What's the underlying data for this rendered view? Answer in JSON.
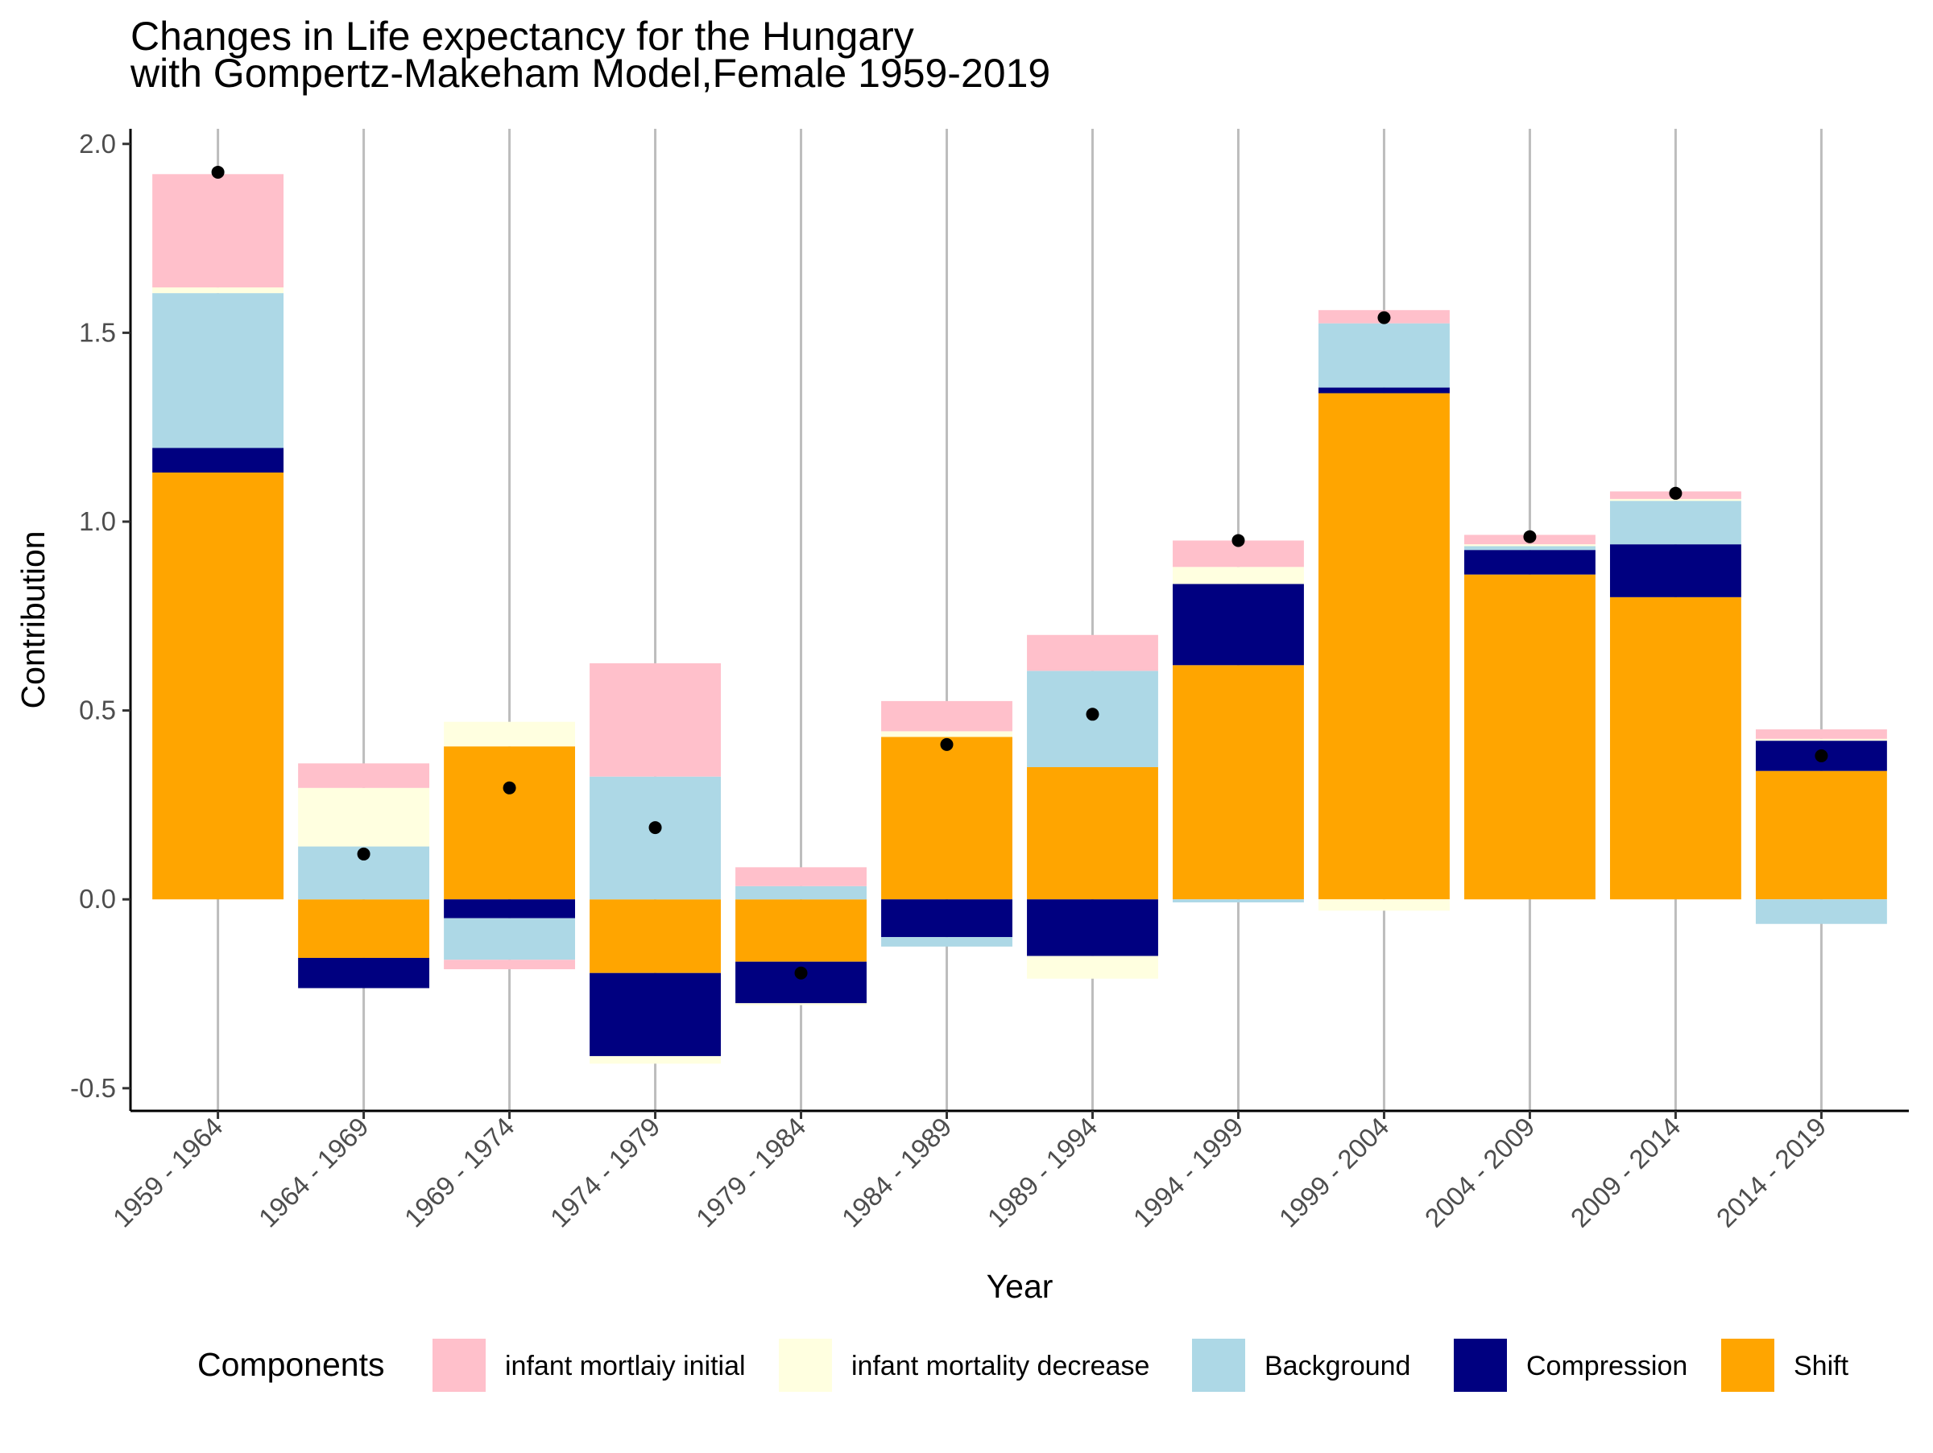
{
  "chart_data": {
    "type": "bar",
    "stacked": "diverging",
    "title_lines": [
      "Changes in Life expectancy for the Hungary",
      " with Gompertz-Makeham Model,Female 1959-2019"
    ],
    "xlabel": "Year",
    "ylabel": "Contribution",
    "ylim": [
      -0.56,
      2.04
    ],
    "yticks": [
      -0.5,
      0.0,
      0.5,
      1.0,
      1.5,
      2.0
    ],
    "ytick_labels": [
      "-0.5",
      "0.0",
      "0.5",
      "1.0",
      "1.5",
      "2.0"
    ],
    "grid": "vertical major lines only",
    "legend_position": "bottom",
    "legend_title": "Components",
    "categories": [
      "1959 - 1964",
      "1964 - 1969",
      "1969 - 1974",
      "1974 - 1979",
      "1979 - 1984",
      "1984 - 1989",
      "1989 - 1994",
      "1994 - 1999",
      "1999 - 2004",
      "2004 - 2009",
      "2009 - 2014",
      "2014 - 2019"
    ],
    "series": [
      {
        "name": "Shift",
        "color": "#FFA500",
        "values": [
          1.13,
          -0.155,
          0.405,
          -0.195,
          -0.165,
          0.43,
          0.35,
          0.62,
          1.34,
          0.86,
          0.8,
          0.34
        ]
      },
      {
        "name": "Compression",
        "color": "#000080",
        "values": [
          0.065,
          -0.08,
          -0.05,
          -0.22,
          -0.11,
          -0.1,
          -0.15,
          0.215,
          0.015,
          0.065,
          0.14,
          0.08
        ]
      },
      {
        "name": "Background",
        "color": "#ADD8E6",
        "values": [
          0.41,
          0.14,
          -0.11,
          0.325,
          0.035,
          -0.025,
          0.255,
          -0.008,
          0.17,
          0.01,
          0.115,
          -0.065
        ]
      },
      {
        "name": "infant mortality decrease",
        "color": "#FFFFE0",
        "values": [
          0.015,
          0.155,
          0.065,
          -0.02,
          -0.005,
          0.015,
          -0.06,
          0.045,
          -0.03,
          0.005,
          0.005,
          0.005
        ]
      },
      {
        "name": "infant mortlaiy initial",
        "color": "#FFC0CB",
        "values": [
          0.3,
          0.065,
          -0.025,
          0.3,
          0.05,
          0.08,
          0.095,
          0.07,
          0.035,
          0.025,
          0.02,
          0.025
        ]
      }
    ],
    "legend_order": [
      "infant mortlaiy initial",
      "infant mortality decrease",
      "Background",
      "Compression",
      "Shift"
    ],
    "total_points": [
      1.925,
      0.12,
      0.295,
      0.19,
      -0.195,
      0.41,
      0.49,
      0.95,
      1.54,
      0.96,
      1.075,
      0.38
    ]
  }
}
